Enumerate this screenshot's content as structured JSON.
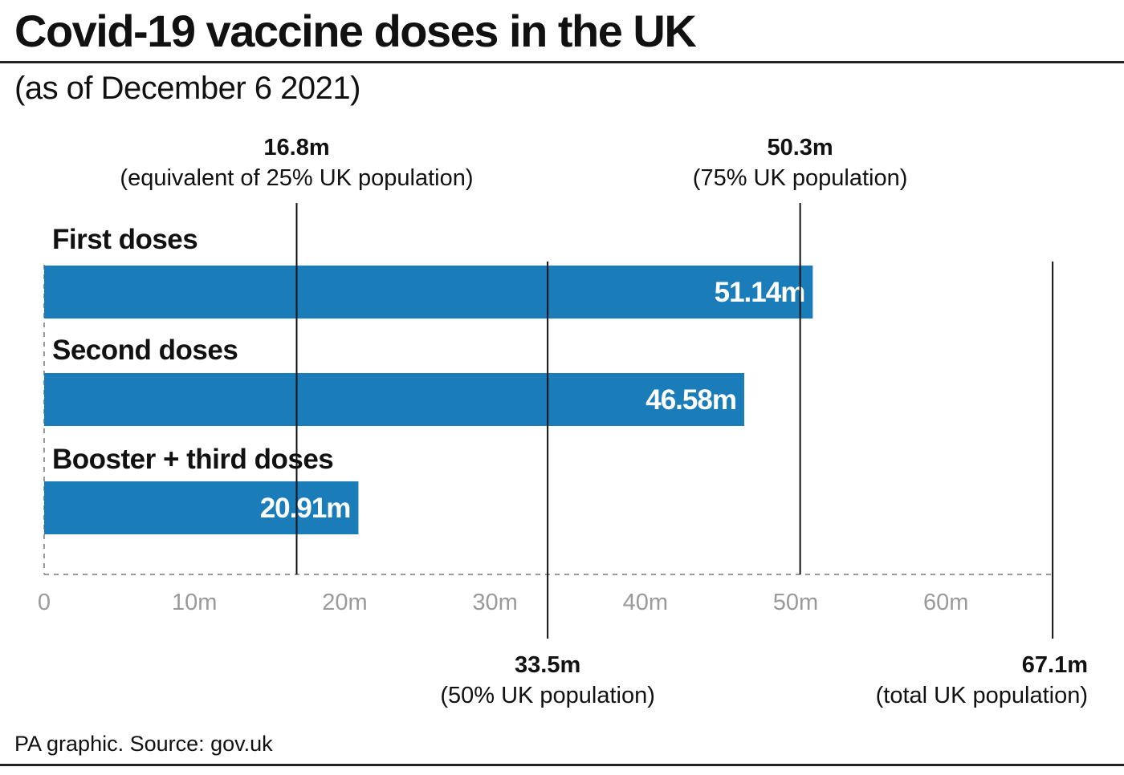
{
  "header": {
    "title": "Covid-19 vaccine doses in the UK",
    "subtitle": "(as of December 6 2021)"
  },
  "footer": {
    "source": "PA graphic. Source: gov.uk"
  },
  "colors": {
    "bar": "#1a7cb8",
    "reference_line": "#111111",
    "axis": "#9a9a9a",
    "text": "#111111"
  },
  "chart_data": {
    "type": "bar",
    "orientation": "horizontal",
    "title": "Covid-19 vaccine doses in the UK",
    "subtitle": "(as of December 6 2021)",
    "categories": [
      "First doses",
      "Second doses",
      "Booster + third doses"
    ],
    "values": [
      51.14,
      46.58,
      20.91
    ],
    "value_labels": [
      "51.14m",
      "46.58m",
      "20.91m"
    ],
    "unit": "millions",
    "xlim": [
      0,
      67.1
    ],
    "x_ticks": [
      0,
      10,
      20,
      30,
      40,
      50,
      60
    ],
    "x_tick_labels": [
      "0",
      "10m",
      "20m",
      "30m",
      "40m",
      "50m",
      "60m"
    ],
    "grid": false,
    "legend": "none",
    "reference_lines": [
      {
        "value": 16.8,
        "label": "16.8m",
        "description": "(equivalent of 25% UK population)",
        "position": "top"
      },
      {
        "value": 33.5,
        "label": "33.5m",
        "description": "(50% UK population)",
        "position": "bottom"
      },
      {
        "value": 50.3,
        "label": "50.3m",
        "description": "(75% UK population)",
        "position": "top"
      },
      {
        "value": 67.1,
        "label": "67.1m",
        "description": "(total UK population)",
        "position": "bottom"
      }
    ]
  }
}
